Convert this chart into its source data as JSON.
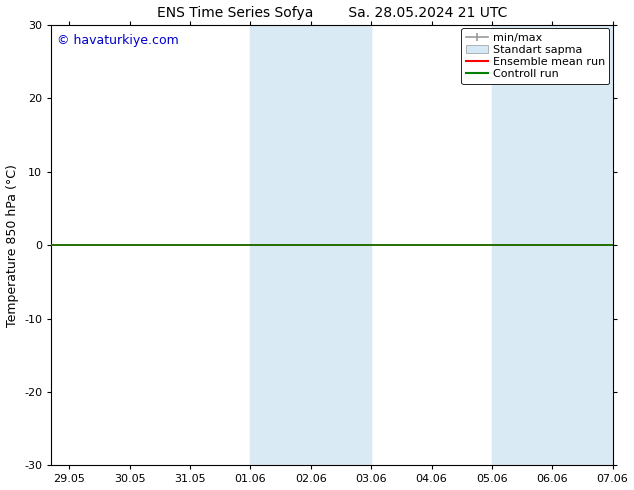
{
  "title_left": "ENS Time Series Sofya",
  "title_right": "Sa. 28.05.2024 21 UTC",
  "ylabel": "Temperature 850 hPa (°C)",
  "ylim": [
    -30,
    30
  ],
  "yticks": [
    -30,
    -20,
    -10,
    0,
    10,
    20,
    30
  ],
  "xtick_labels": [
    "29.05",
    "30.05",
    "31.05",
    "01.06",
    "02.06",
    "03.06",
    "04.06",
    "05.06",
    "06.06",
    "07.06"
  ],
  "xtick_positions": [
    0,
    1,
    2,
    3,
    4,
    5,
    6,
    7,
    8,
    9
  ],
  "shaded_cols": [
    {
      "xstart": 3.0,
      "xend": 4.0,
      "color": "#daeaf5"
    },
    {
      "xstart": 4.0,
      "xend": 5.0,
      "color": "#daeaf5"
    },
    {
      "xstart": 7.0,
      "xend": 8.0,
      "color": "#daeaf5"
    },
    {
      "xstart": 8.0,
      "xend": 9.0,
      "color": "#daeaf5"
    }
  ],
  "control_run_y": 0.0,
  "control_run_color": "#008000",
  "ensemble_mean_color": "#ff0000",
  "minmax_color": "#999999",
  "std_color": "#d4e8f5",
  "watermark_text": "© havaturkiye.com",
  "watermark_color": "#0000cc",
  "background_color": "#ffffff",
  "legend_labels": [
    "min/max",
    "Standart sapma",
    "Ensemble mean run",
    "Controll run"
  ],
  "legend_colors": [
    "#999999",
    "#d4e8f5",
    "#ff0000",
    "#008000"
  ],
  "xlim": [
    -0.3,
    9.0
  ],
  "font_size_ticks": 8,
  "font_size_legend": 8,
  "font_size_title": 10,
  "font_size_ylabel": 9,
  "font_size_watermark": 9
}
